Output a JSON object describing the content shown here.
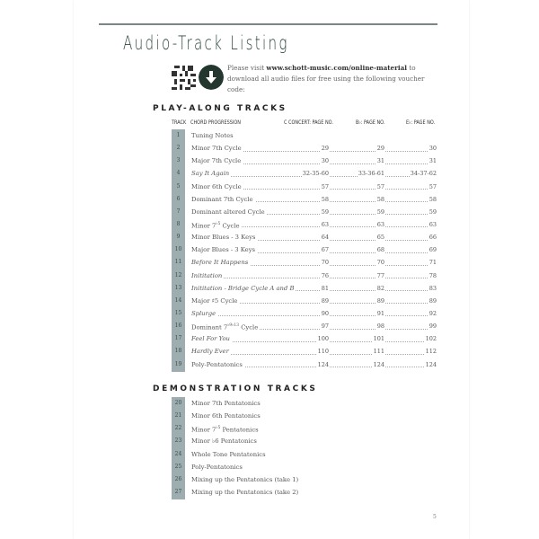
{
  "title": "Audio-Track Listing",
  "intro": {
    "pre": "Please visit ",
    "url": "www.schott-music.com/online-material",
    "post": " to download all audio files for free using the following voucher code:"
  },
  "icons": {
    "qr": "qr-code-icon",
    "download": "download-arrow-icon"
  },
  "play_along": {
    "heading": "PLAY-ALONG TRACKS",
    "columns": {
      "track": "TRACK",
      "chord": "CHORD PROGRESSION",
      "c": "C CONCERT: PAGE NO.",
      "bb": "B♭: PAGE NO.",
      "eb": "E♭: PAGE NO."
    },
    "rows": [
      {
        "n": "1",
        "name": "Tuning Notes",
        "sup": "",
        "suffix": "",
        "italic": false,
        "c": "",
        "bb": "",
        "eb": ""
      },
      {
        "n": "2",
        "name": "Minor 7th Cycle",
        "sup": "",
        "suffix": "",
        "italic": false,
        "c": "29",
        "bb": "29",
        "eb": "30"
      },
      {
        "n": "3",
        "name": "Major 7th Cycle",
        "sup": "",
        "suffix": "",
        "italic": false,
        "c": "30",
        "bb": "31",
        "eb": "31"
      },
      {
        "n": "4",
        "name": "Say It Again",
        "sup": "",
        "suffix": "",
        "italic": true,
        "c": "32-35-60",
        "bb": "33-36-61",
        "eb": "34-37-62"
      },
      {
        "n": "5",
        "name": "Minor 6th Cycle",
        "sup": "",
        "suffix": "",
        "italic": false,
        "c": "57",
        "bb": "57",
        "eb": "57"
      },
      {
        "n": "6",
        "name": "Dominant 7th Cycle",
        "sup": "",
        "suffix": "",
        "italic": false,
        "c": "58",
        "bb": "58",
        "eb": "58"
      },
      {
        "n": "7",
        "name": "Dominant altered Cycle",
        "sup": "",
        "suffix": "",
        "italic": false,
        "c": "59",
        "bb": "59",
        "eb": "59"
      },
      {
        "n": "8",
        "name": "Minor 7",
        "sup": "♭5",
        "suffix": " Cycle",
        "italic": false,
        "c": "63",
        "bb": "63",
        "eb": "63"
      },
      {
        "n": "9",
        "name": "Minor Blues - 3 Keys",
        "sup": "",
        "suffix": "",
        "italic": false,
        "c": "64",
        "bb": "65",
        "eb": "66"
      },
      {
        "n": "10",
        "name": "Major Blues - 3 Keys",
        "sup": "",
        "suffix": "",
        "italic": false,
        "c": "67",
        "bb": "68",
        "eb": "69"
      },
      {
        "n": "11",
        "name": "Before It Happens",
        "sup": "",
        "suffix": "",
        "italic": true,
        "c": "70",
        "bb": "70",
        "eb": "71"
      },
      {
        "n": "12",
        "name": "Inititation",
        "sup": "",
        "suffix": "",
        "italic": true,
        "c": "76",
        "bb": "77",
        "eb": "78"
      },
      {
        "n": "13",
        "name": "Inititation",
        "sup": "",
        "suffix": " - Bridge Cycle A and B",
        "italic": true,
        "c": "81",
        "bb": "82",
        "eb": "83"
      },
      {
        "n": "14",
        "name": "Major ♯5 Cycle",
        "sup": "",
        "suffix": "",
        "italic": false,
        "c": "89",
        "bb": "89",
        "eb": "89"
      },
      {
        "n": "15",
        "name": "Splurge",
        "sup": "",
        "suffix": "",
        "italic": true,
        "c": "90",
        "bb": "91",
        "eb": "92"
      },
      {
        "n": "16",
        "name": "Dominant 7",
        "sup": "♭9♭13",
        "suffix": " Cycle",
        "italic": false,
        "c": "97",
        "bb": "98",
        "eb": "99"
      },
      {
        "n": "17",
        "name": "Feel For You",
        "sup": "",
        "suffix": "",
        "italic": true,
        "c": "100",
        "bb": "101",
        "eb": "102"
      },
      {
        "n": "18",
        "name": "Hardly Ever",
        "sup": "",
        "suffix": "",
        "italic": true,
        "c": "110",
        "bb": "111",
        "eb": "112"
      },
      {
        "n": "19",
        "name": "Poly-Pentatonics",
        "sup": "",
        "suffix": "",
        "italic": false,
        "c": "124",
        "bb": "124",
        "eb": "124"
      }
    ]
  },
  "demo": {
    "heading": "DEMONSTRATION TRACKS",
    "rows": [
      {
        "n": "20",
        "name": "Minor 7th Pentatonics",
        "sup": "",
        "suffix": ""
      },
      {
        "n": "21",
        "name": "Minor 6th Pentatonics",
        "sup": "",
        "suffix": ""
      },
      {
        "n": "22",
        "name": "Minor 7",
        "sup": "♭5",
        "suffix": " Pentatonics"
      },
      {
        "n": "23",
        "name": "Minor ♭6 Pentatonics",
        "sup": "",
        "suffix": ""
      },
      {
        "n": "24",
        "name": "Whole Tone Pentatonics",
        "sup": "",
        "suffix": ""
      },
      {
        "n": "25",
        "name": "Poly-Pentatonics",
        "sup": "",
        "suffix": ""
      },
      {
        "n": "26",
        "name": "Mixing up the Pentatonics (take 1)",
        "sup": "",
        "suffix": ""
      },
      {
        "n": "27",
        "name": "Mixing up the Pentatonics (take 2)",
        "sup": "",
        "suffix": ""
      }
    ]
  },
  "page_number": "5",
  "colors": {
    "title": "#2d4741",
    "band": "#9eadb0",
    "icon": "#24372f"
  }
}
